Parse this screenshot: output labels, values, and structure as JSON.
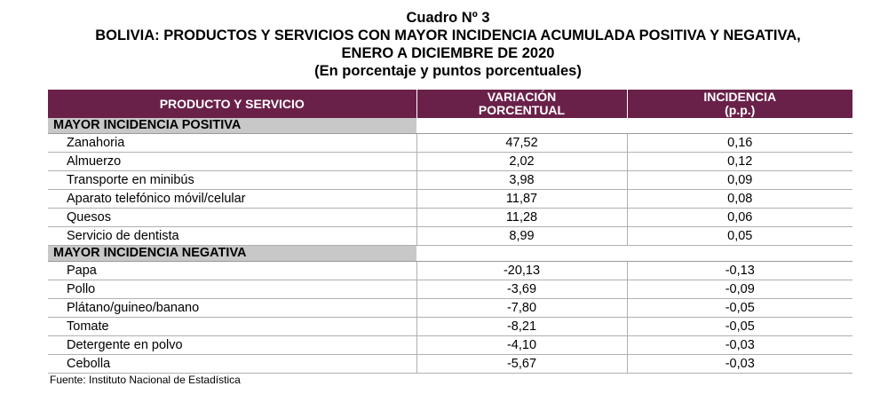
{
  "title": {
    "line1": "Cuadro Nº 3",
    "line2": "BOLIVIA: PRODUCTOS Y SERVICIOS CON MAYOR INCIDENCIA ACUMULADA POSITIVA Y NEGATIVA,",
    "line3": "ENERO A DICIEMBRE DE 2020",
    "line4": "(En porcentaje y puntos porcentuales)"
  },
  "table": {
    "headers": {
      "col1": "PRODUCTO Y SERVICIO",
      "col2_line1": "VARIACIÓN",
      "col2_line2": "PORCENTUAL",
      "col3_line1": "INCIDENCIA",
      "col3_line2": "(p.p.)"
    },
    "positive": {
      "label": "MAYOR INCIDENCIA POSITIVA",
      "rows": [
        {
          "product": "Zanahoria",
          "variation": "47,52",
          "incidence": "0,16"
        },
        {
          "product": "Almuerzo",
          "variation": "2,02",
          "incidence": "0,12"
        },
        {
          "product": "Transporte en minibús",
          "variation": "3,98",
          "incidence": "0,09"
        },
        {
          "product": "Aparato telefónico móvil/celular",
          "variation": "11,87",
          "incidence": "0,08"
        },
        {
          "product": "Quesos",
          "variation": "11,28",
          "incidence": "0,06"
        },
        {
          "product": "Servicio de dentista",
          "variation": "8,99",
          "incidence": "0,05"
        }
      ]
    },
    "negative": {
      "label": "MAYOR INCIDENCIA NEGATIVA",
      "rows": [
        {
          "product": "Papa",
          "variation": "-20,13",
          "incidence": "-0,13"
        },
        {
          "product": "Pollo",
          "variation": "-3,69",
          "incidence": "-0,09"
        },
        {
          "product": "Plátano/guineo/banano",
          "variation": "-7,80",
          "incidence": "-0,05"
        },
        {
          "product": "Tomate",
          "variation": "-8,21",
          "incidence": "-0,05"
        },
        {
          "product": "Detergente en polvo",
          "variation": "-4,10",
          "incidence": "-0,03"
        },
        {
          "product": "Cebolla",
          "variation": "-5,67",
          "incidence": "-0,03"
        }
      ]
    }
  },
  "source": "Fuente: Instituto Nacional de Estadística",
  "colors": {
    "header_bg": "#6a2149",
    "section_bg": "#c8c8c8"
  }
}
